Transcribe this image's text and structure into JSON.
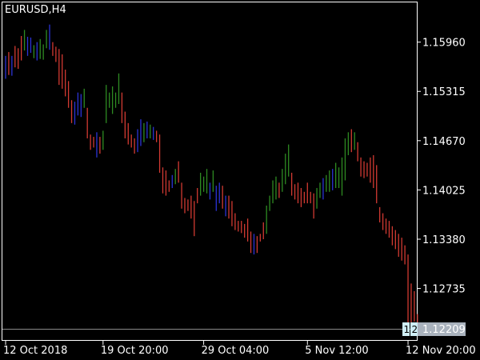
{
  "window": {
    "symbol_title": "EURUSD,H4"
  },
  "chart_data": {
    "type": "bar",
    "title": "EURUSD,H4",
    "y_ticks": [
      "1.15960",
      "1.15315",
      "1.14670",
      "1.14025",
      "1.13380",
      "1.12735"
    ],
    "y_tick_values": [
      1.1596,
      1.15315,
      1.1467,
      1.14025,
      1.1338,
      1.12735
    ],
    "x_ticks": [
      "12 Oct 2018",
      "19 Oct 20:00",
      "29 Oct 04:00",
      "5 Nov 12:00",
      "12 Nov 20:00"
    ],
    "x_tick_bar_index": [
      0,
      31,
      63,
      96,
      128
    ],
    "current_price": "1.12209",
    "current_price_value": 1.12209,
    "flags": [
      "1",
      "2"
    ],
    "ylim": [
      1.1205,
      1.1648
    ],
    "colors": {
      "up": "#2e8b22",
      "down": "#d23a32",
      "neutral": "#2b33d6",
      "price_label_bg": "#a9b2bd",
      "flag_bg": "#cfeef5",
      "axis": "#ffffff"
    },
    "bars": [
      {
        "h": 1.1578,
        "l": 1.1548,
        "c": "n"
      },
      {
        "h": 1.1583,
        "l": 1.1553,
        "c": "d"
      },
      {
        "h": 1.1578,
        "l": 1.1552,
        "c": "n"
      },
      {
        "h": 1.1591,
        "l": 1.1563,
        "c": "d"
      },
      {
        "h": 1.1588,
        "l": 1.1561,
        "c": "d"
      },
      {
        "h": 1.1604,
        "l": 1.1572,
        "c": "d"
      },
      {
        "h": 1.1612,
        "l": 1.1585,
        "c": "u"
      },
      {
        "h": 1.1603,
        "l": 1.1578,
        "c": "n"
      },
      {
        "h": 1.1602,
        "l": 1.1582,
        "c": "n"
      },
      {
        "h": 1.1592,
        "l": 1.1575,
        "c": "u"
      },
      {
        "h": 1.1596,
        "l": 1.1572,
        "c": "n"
      },
      {
        "h": 1.16,
        "l": 1.1574,
        "c": "u"
      },
      {
        "h": 1.1593,
        "l": 1.1573,
        "c": "u"
      },
      {
        "h": 1.1612,
        "l": 1.1588,
        "c": "u"
      },
      {
        "h": 1.1619,
        "l": 1.1586,
        "c": "n"
      },
      {
        "h": 1.1596,
        "l": 1.1578,
        "c": "d"
      },
      {
        "h": 1.159,
        "l": 1.157,
        "c": "d"
      },
      {
        "h": 1.1587,
        "l": 1.154,
        "c": "d"
      },
      {
        "h": 1.158,
        "l": 1.1535,
        "c": "d"
      },
      {
        "h": 1.156,
        "l": 1.1525,
        "c": "d"
      },
      {
        "h": 1.1545,
        "l": 1.151,
        "c": "d"
      },
      {
        "h": 1.152,
        "l": 1.149,
        "c": "d"
      },
      {
        "h": 1.1518,
        "l": 1.1488,
        "c": "n"
      },
      {
        "h": 1.153,
        "l": 1.15,
        "c": "n"
      },
      {
        "h": 1.1528,
        "l": 1.1498,
        "c": "n"
      },
      {
        "h": 1.1535,
        "l": 1.151,
        "c": "u"
      },
      {
        "h": 1.151,
        "l": 1.147,
        "c": "d"
      },
      {
        "h": 1.1475,
        "l": 1.1455,
        "c": "d"
      },
      {
        "h": 1.1472,
        "l": 1.1458,
        "c": "d"
      },
      {
        "h": 1.1478,
        "l": 1.1445,
        "c": "n"
      },
      {
        "h": 1.1472,
        "l": 1.145,
        "c": "d"
      },
      {
        "h": 1.148,
        "l": 1.1455,
        "c": "u"
      },
      {
        "h": 1.154,
        "l": 1.149,
        "c": "u"
      },
      {
        "h": 1.153,
        "l": 1.151,
        "c": "u"
      },
      {
        "h": 1.1538,
        "l": 1.1502,
        "c": "u"
      },
      {
        "h": 1.153,
        "l": 1.151,
        "c": "u"
      },
      {
        "h": 1.1555,
        "l": 1.1515,
        "c": "u"
      },
      {
        "h": 1.153,
        "l": 1.149,
        "c": "d"
      },
      {
        "h": 1.1505,
        "l": 1.147,
        "c": "d"
      },
      {
        "h": 1.149,
        "l": 1.1462,
        "c": "d"
      },
      {
        "h": 1.1475,
        "l": 1.1458,
        "c": "d"
      },
      {
        "h": 1.147,
        "l": 1.145,
        "c": "d"
      },
      {
        "h": 1.1482,
        "l": 1.1452,
        "c": "n"
      },
      {
        "h": 1.1495,
        "l": 1.146,
        "c": "n"
      },
      {
        "h": 1.149,
        "l": 1.1465,
        "c": "u"
      },
      {
        "h": 1.1492,
        "l": 1.147,
        "c": "n"
      },
      {
        "h": 1.1488,
        "l": 1.147,
        "c": "u"
      },
      {
        "h": 1.1485,
        "l": 1.1468,
        "c": "n"
      },
      {
        "h": 1.148,
        "l": 1.1465,
        "c": "d"
      },
      {
        "h": 1.1475,
        "l": 1.1425,
        "c": "d"
      },
      {
        "h": 1.1432,
        "l": 1.1398,
        "c": "d"
      },
      {
        "h": 1.1428,
        "l": 1.1395,
        "c": "d"
      },
      {
        "h": 1.1415,
        "l": 1.14,
        "c": "d"
      },
      {
        "h": 1.1422,
        "l": 1.1405,
        "c": "n"
      },
      {
        "h": 1.143,
        "l": 1.141,
        "c": "u"
      },
      {
        "h": 1.144,
        "l": 1.1412,
        "c": "d"
      },
      {
        "h": 1.1412,
        "l": 1.1378,
        "c": "d"
      },
      {
        "h": 1.1392,
        "l": 1.1372,
        "c": "d"
      },
      {
        "h": 1.139,
        "l": 1.1375,
        "c": "d"
      },
      {
        "h": 1.1395,
        "l": 1.1365,
        "c": "d"
      },
      {
        "h": 1.1388,
        "l": 1.1342,
        "c": "d"
      },
      {
        "h": 1.1405,
        "l": 1.1385,
        "c": "d"
      },
      {
        "h": 1.1425,
        "l": 1.1395,
        "c": "u"
      },
      {
        "h": 1.142,
        "l": 1.14,
        "c": "u"
      },
      {
        "h": 1.143,
        "l": 1.1398,
        "c": "u"
      },
      {
        "h": 1.1412,
        "l": 1.139,
        "c": "n"
      },
      {
        "h": 1.1428,
        "l": 1.14,
        "c": "u"
      },
      {
        "h": 1.1408,
        "l": 1.1375,
        "c": "n"
      },
      {
        "h": 1.1412,
        "l": 1.1385,
        "c": "n"
      },
      {
        "h": 1.1408,
        "l": 1.1378,
        "c": "d"
      },
      {
        "h": 1.1395,
        "l": 1.1368,
        "c": "n"
      },
      {
        "h": 1.1395,
        "l": 1.1365,
        "c": "d"
      },
      {
        "h": 1.1388,
        "l": 1.1355,
        "c": "d"
      },
      {
        "h": 1.1372,
        "l": 1.135,
        "c": "d"
      },
      {
        "h": 1.1362,
        "l": 1.1348,
        "c": "d"
      },
      {
        "h": 1.1362,
        "l": 1.1346,
        "c": "d"
      },
      {
        "h": 1.1358,
        "l": 1.134,
        "c": "d"
      },
      {
        "h": 1.1365,
        "l": 1.1335,
        "c": "d"
      },
      {
        "h": 1.1348,
        "l": 1.132,
        "c": "d"
      },
      {
        "h": 1.1345,
        "l": 1.1318,
        "c": "n"
      },
      {
        "h": 1.1342,
        "l": 1.132,
        "c": "d"
      },
      {
        "h": 1.1345,
        "l": 1.1335,
        "c": "d"
      },
      {
        "h": 1.136,
        "l": 1.1338,
        "c": "d"
      },
      {
        "h": 1.1382,
        "l": 1.1345,
        "c": "u"
      },
      {
        "h": 1.1395,
        "l": 1.1375,
        "c": "u"
      },
      {
        "h": 1.1415,
        "l": 1.1385,
        "c": "u"
      },
      {
        "h": 1.142,
        "l": 1.139,
        "c": "u"
      },
      {
        "h": 1.1412,
        "l": 1.1392,
        "c": "d"
      },
      {
        "h": 1.143,
        "l": 1.14,
        "c": "u"
      },
      {
        "h": 1.145,
        "l": 1.141,
        "c": "u"
      },
      {
        "h": 1.1462,
        "l": 1.142,
        "c": "u"
      },
      {
        "h": 1.1425,
        "l": 1.1395,
        "c": "d"
      },
      {
        "h": 1.141,
        "l": 1.139,
        "c": "d"
      },
      {
        "h": 1.1412,
        "l": 1.1385,
        "c": "d"
      },
      {
        "h": 1.1405,
        "l": 1.138,
        "c": "d"
      },
      {
        "h": 1.14,
        "l": 1.1385,
        "c": "d"
      },
      {
        "h": 1.1412,
        "l": 1.1385,
        "c": "d"
      },
      {
        "h": 1.14,
        "l": 1.1385,
        "c": "d"
      },
      {
        "h": 1.1398,
        "l": 1.1365,
        "c": "d"
      },
      {
        "h": 1.1405,
        "l": 1.1378,
        "c": "u"
      },
      {
        "h": 1.1412,
        "l": 1.1392,
        "c": "u"
      },
      {
        "h": 1.1418,
        "l": 1.139,
        "c": "n"
      },
      {
        "h": 1.1422,
        "l": 1.14,
        "c": "u"
      },
      {
        "h": 1.1428,
        "l": 1.14,
        "c": "u"
      },
      {
        "h": 1.143,
        "l": 1.1402,
        "c": "n"
      },
      {
        "h": 1.1438,
        "l": 1.1405,
        "c": "u"
      },
      {
        "h": 1.1432,
        "l": 1.1405,
        "c": "u"
      },
      {
        "h": 1.1445,
        "l": 1.1395,
        "c": "u"
      },
      {
        "h": 1.147,
        "l": 1.1415,
        "c": "u"
      },
      {
        "h": 1.1478,
        "l": 1.1448,
        "c": "u"
      },
      {
        "h": 1.1482,
        "l": 1.1452,
        "c": "d"
      },
      {
        "h": 1.1478,
        "l": 1.1455,
        "c": "u"
      },
      {
        "h": 1.1465,
        "l": 1.144,
        "c": "d"
      },
      {
        "h": 1.1445,
        "l": 1.142,
        "c": "d"
      },
      {
        "h": 1.144,
        "l": 1.1418,
        "c": "d"
      },
      {
        "h": 1.1438,
        "l": 1.142,
        "c": "d"
      },
      {
        "h": 1.1445,
        "l": 1.1412,
        "c": "d"
      },
      {
        "h": 1.1448,
        "l": 1.1405,
        "c": "d"
      },
      {
        "h": 1.1435,
        "l": 1.1385,
        "c": "d"
      },
      {
        "h": 1.138,
        "l": 1.136,
        "c": "d"
      },
      {
        "h": 1.1372,
        "l": 1.135,
        "c": "d"
      },
      {
        "h": 1.1365,
        "l": 1.1345,
        "c": "d"
      },
      {
        "h": 1.1362,
        "l": 1.134,
        "c": "d"
      },
      {
        "h": 1.1355,
        "l": 1.133,
        "c": "d"
      },
      {
        "h": 1.135,
        "l": 1.1325,
        "c": "d"
      },
      {
        "h": 1.1345,
        "l": 1.1315,
        "c": "d"
      },
      {
        "h": 1.134,
        "l": 1.131,
        "c": "d"
      },
      {
        "h": 1.133,
        "l": 1.1305,
        "c": "d"
      },
      {
        "h": 1.1318,
        "l": 1.1225,
        "c": "d"
      },
      {
        "h": 1.128,
        "l": 1.1225,
        "c": "d"
      },
      {
        "h": 1.127,
        "l": 1.123,
        "c": "d"
      },
      {
        "h": 1.124,
        "l": 1.122,
        "c": "d"
      }
    ]
  }
}
